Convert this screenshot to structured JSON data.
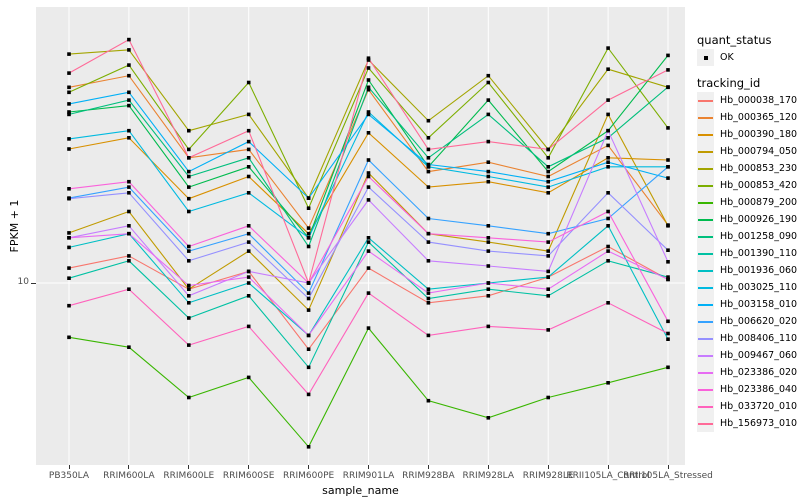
{
  "figure": {
    "background": "#FFFFFF",
    "panel_color": "#EBEBEB",
    "grid_color": "#FFFFFF",
    "point_color": "#000000",
    "axis_text_color": "#4D4D4D",
    "axis_title_color": "#000000"
  },
  "axes": {
    "xlabel": "sample_name",
    "ylabel": "FPKM + 1",
    "y_tick_label": "10"
  },
  "legend": {
    "quant_status_title": "quant_status",
    "quant_status_item": "OK",
    "tracking_id_title": "tracking_id"
  },
  "chart_data": {
    "type": "line",
    "title": "",
    "xlabel": "sample_name",
    "ylabel": "FPKM + 1",
    "y_scale": "log10",
    "y_ticks": [
      10
    ],
    "y_tick_labels": [
      "10"
    ],
    "ylim": [
      2.2,
      97
    ],
    "grid": true,
    "legend_position": "right",
    "point_marker": "square",
    "categories": [
      "PB350LA",
      "RRIM600LA",
      "RRIM600LE",
      "RRIM600SE",
      "RRIM600PE",
      "RRIM901LA",
      "RRIM928BA",
      "RRIM928LA",
      "RRIM928LE",
      "RRII105LA_Control",
      "RRII105LA_Stressed"
    ],
    "series": [
      {
        "name": "Hb_000038_170",
        "color": "#F8766D",
        "quant_status": "OK",
        "values": [
          11.3,
          12.5,
          9.5,
          11.0,
          5.8,
          11.3,
          8.5,
          9.0,
          10.5,
          13.5,
          10.3
        ]
      },
      {
        "name": "Hb_000365_120",
        "color": "#EA8331",
        "quant_status": "OK",
        "values": [
          50,
          55,
          28,
          30,
          15.7,
          49,
          25,
          27,
          24,
          31,
          16.1
        ]
      },
      {
        "name": "Hb_000390_180",
        "color": "#D89000",
        "quant_status": "OK",
        "values": [
          30.1,
          33,
          20,
          24,
          15,
          34.4,
          22,
          23,
          21,
          28,
          27.5
        ]
      },
      {
        "name": "Hb_000794_050",
        "color": "#C09B00",
        "quant_status": "OK",
        "values": [
          15.1,
          18,
          9.5,
          13,
          8,
          24.7,
          15,
          14,
          13,
          40,
          16
        ]
      },
      {
        "name": "Hb_000853_230",
        "color": "#A3A500",
        "quant_status": "OK",
        "values": [
          65.7,
          68,
          35,
          40,
          20.1,
          62.6,
          38,
          55,
          30,
          58,
          50
        ]
      },
      {
        "name": "Hb_000853_420",
        "color": "#7CAE00",
        "quant_status": "OK",
        "values": [
          48,
          60,
          30,
          52,
          18.5,
          58.6,
          33,
          52,
          28,
          69,
          35.8
        ]
      },
      {
        "name": "Hb_000879_200",
        "color": "#39B600",
        "quant_status": "OK",
        "values": [
          6.4,
          5.9,
          3.9,
          4.6,
          2.6,
          6.9,
          3.8,
          3.3,
          3.9,
          4.4,
          5.0
        ]
      },
      {
        "name": "Hb_000926_190",
        "color": "#00BB4E",
        "quant_status": "OK",
        "values": [
          40.8,
          43,
          22,
          26,
          14.5,
          53.1,
          26,
          45,
          25,
          35,
          65
        ]
      },
      {
        "name": "Hb_001258_090",
        "color": "#00BF7D",
        "quant_status": "OK",
        "values": [
          40,
          45,
          24,
          28,
          13.5,
          50,
          28,
          40,
          26,
          33,
          50.1
        ]
      },
      {
        "name": "Hb_001390_110",
        "color": "#00C1A3",
        "quant_status": "OK",
        "values": [
          10.4,
          12,
          7.5,
          9,
          5,
          14,
          8.8,
          9.5,
          9,
          12,
          10.5
        ]
      },
      {
        "name": "Hb_001936_060",
        "color": "#00BFC4",
        "quant_status": "OK",
        "values": [
          13.4,
          15,
          8.5,
          10,
          6.5,
          14.5,
          9.5,
          10,
          10.5,
          16,
          6.3
        ]
      },
      {
        "name": "Hb_003025_110",
        "color": "#00BAE0",
        "quant_status": "OK",
        "values": [
          32.7,
          35,
          18,
          21,
          14.5,
          40.8,
          26,
          24,
          22,
          26,
          26
        ]
      },
      {
        "name": "Hb_003158_010",
        "color": "#00B0F6",
        "quant_status": "OK",
        "values": [
          43.6,
          48,
          25,
          32,
          20.1,
          40,
          26.5,
          25,
          23,
          27,
          23.7
        ]
      },
      {
        "name": "Hb_006620_020",
        "color": "#35A2FF",
        "quant_status": "OK",
        "values": [
          20.1,
          22,
          13,
          15,
          9.2,
          27.5,
          17,
          16,
          15,
          17,
          26
        ]
      },
      {
        "name": "Hb_008406_110",
        "color": "#9590FF",
        "quant_status": "OK",
        "values": [
          20,
          21,
          12,
          14,
          8.8,
          22,
          14,
          13,
          12.5,
          21,
          13.1
        ]
      },
      {
        "name": "Hb_009467_060",
        "color": "#C77CFF",
        "quant_status": "OK",
        "values": [
          14.5,
          16,
          9,
          11,
          10,
          19.8,
          12,
          11.5,
          11,
          35,
          11.9
        ]
      },
      {
        "name": "Hb_023386_020",
        "color": "#E76BF3",
        "quant_status": "OK",
        "values": [
          14.5,
          15,
          9.8,
          10.5,
          6.5,
          13,
          9.2,
          10,
          9.5,
          13,
          10.3
        ]
      },
      {
        "name": "Hb_023386_040",
        "color": "#FA62DB",
        "quant_status": "OK",
        "values": [
          21.7,
          23,
          13.5,
          16,
          10,
          24,
          15,
          14.5,
          14,
          18,
          7.3
        ]
      },
      {
        "name": "Hb_033720_010",
        "color": "#FF62BC",
        "quant_status": "OK",
        "values": [
          8.3,
          9.5,
          6,
          7,
          4,
          9.2,
          6.5,
          7,
          6.8,
          8.5,
          6.6
        ]
      },
      {
        "name": "Hb_156973_010",
        "color": "#FF6A98",
        "quant_status": "OK",
        "values": [
          56.2,
          74,
          28,
          35,
          10,
          63.5,
          30,
          32,
          30,
          45,
          57.7
        ]
      }
    ]
  }
}
